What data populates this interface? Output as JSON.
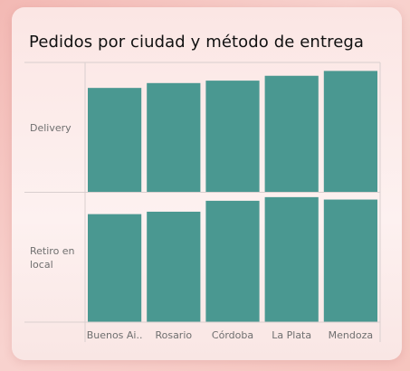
{
  "chart_data": {
    "type": "bar",
    "title": "Pedidos por ciudad y método de entrega",
    "categories": [
      "Buenos Ai..",
      "Rosario",
      "Córdoba",
      "La Plata",
      "Mendoza"
    ],
    "series": [
      {
        "name": "Delivery",
        "values": [
          86,
          90,
          92,
          96,
          100
        ]
      },
      {
        "name": "Retiro en local",
        "values": [
          89,
          91,
          100,
          103,
          101
        ]
      }
    ],
    "panel_ylim": [
      0,
      107
    ],
    "grid": false,
    "bar_color": "#4a9891"
  }
}
